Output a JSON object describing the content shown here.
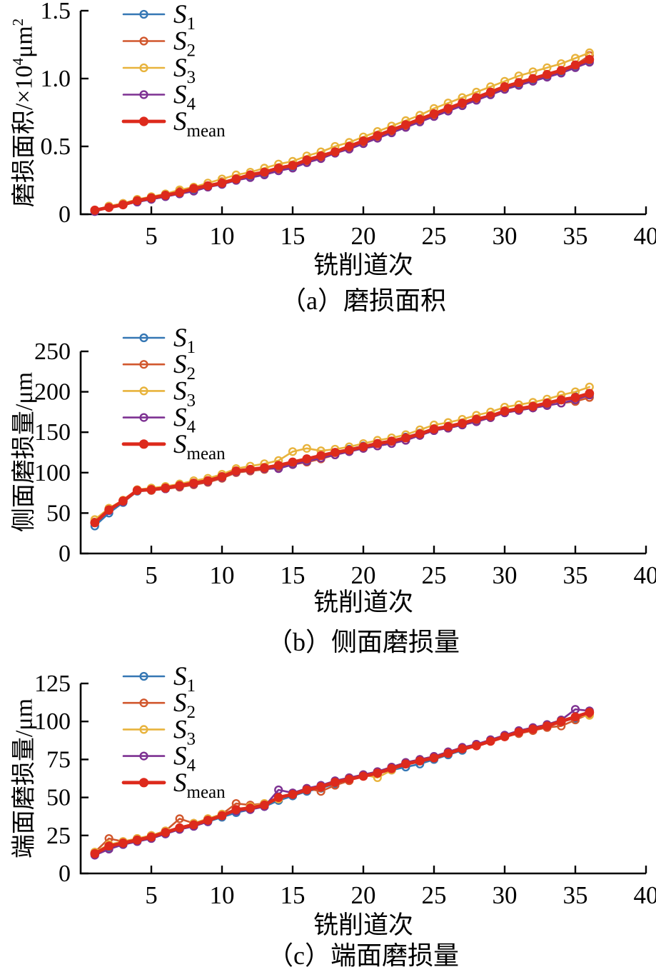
{
  "figure": {
    "background": "#ffffff",
    "axis_color": "#000000",
    "n_subplots": 3
  },
  "chart_data": [
    {
      "type": "line",
      "caption": "（a）磨损面积",
      "xlabel": "铣削道次",
      "ylabel": {
        "text": "磨损面积/×10⁴μm²",
        "segments": [
          {
            "t": "磨损面积/×10"
          },
          {
            "t": "4",
            "sup": true
          },
          {
            "t": "μm"
          },
          {
            "t": "2",
            "sup": true
          }
        ]
      },
      "xlim": [
        0,
        40
      ],
      "ylim": [
        0,
        1.5
      ],
      "xticks": [
        5,
        10,
        15,
        20,
        25,
        30,
        35,
        40
      ],
      "yticks": [
        0,
        0.5,
        1,
        1.5
      ],
      "ytick_labels": [
        "0",
        "0.5",
        "1.0",
        "1.5"
      ],
      "legend_position": "upper-left",
      "grid": false,
      "x": [
        1,
        2,
        3,
        4,
        5,
        6,
        7,
        8,
        9,
        10,
        11,
        12,
        13,
        14,
        15,
        16,
        17,
        18,
        19,
        20,
        21,
        22,
        23,
        24,
        25,
        26,
        27,
        28,
        29,
        30,
        31,
        32,
        33,
        34,
        35,
        36
      ],
      "series": [
        {
          "name": "S1",
          "label_base": "S",
          "label_sub": "1",
          "color": "#3577B4",
          "marker": "open",
          "values": [
            0.02,
            0.05,
            0.07,
            0.09,
            0.11,
            0.13,
            0.16,
            0.18,
            0.21,
            0.22,
            0.25,
            0.28,
            0.3,
            0.33,
            0.35,
            0.39,
            0.42,
            0.46,
            0.49,
            0.53,
            0.57,
            0.61,
            0.65,
            0.69,
            0.73,
            0.77,
            0.81,
            0.85,
            0.89,
            0.93,
            0.96,
            0.99,
            1.02,
            1.05,
            1.09,
            1.13
          ]
        },
        {
          "name": "S2",
          "label_base": "S",
          "label_sub": "2",
          "color": "#D1572D",
          "marker": "open",
          "values": [
            0.03,
            0.06,
            0.08,
            0.1,
            0.12,
            0.14,
            0.17,
            0.19,
            0.21,
            0.24,
            0.26,
            0.29,
            0.31,
            0.33,
            0.36,
            0.39,
            0.42,
            0.46,
            0.49,
            0.53,
            0.57,
            0.61,
            0.65,
            0.69,
            0.73,
            0.77,
            0.81,
            0.85,
            0.89,
            0.93,
            0.97,
            1.0,
            1.03,
            1.06,
            1.1,
            1.17
          ]
        },
        {
          "name": "S3",
          "label_base": "S",
          "label_sub": "3",
          "color": "#E8B33C",
          "marker": "open",
          "values": [
            0.03,
            0.06,
            0.08,
            0.11,
            0.13,
            0.15,
            0.18,
            0.2,
            0.23,
            0.26,
            0.29,
            0.31,
            0.34,
            0.37,
            0.39,
            0.43,
            0.46,
            0.5,
            0.53,
            0.57,
            0.61,
            0.65,
            0.69,
            0.73,
            0.78,
            0.82,
            0.86,
            0.9,
            0.94,
            0.98,
            1.02,
            1.05,
            1.08,
            1.11,
            1.15,
            1.19
          ]
        },
        {
          "name": "S4",
          "label_base": "S",
          "label_sub": "4",
          "color": "#7D3192",
          "marker": "open",
          "values": [
            0.02,
            0.05,
            0.07,
            0.09,
            0.11,
            0.13,
            0.15,
            0.17,
            0.2,
            0.22,
            0.25,
            0.27,
            0.29,
            0.32,
            0.34,
            0.38,
            0.41,
            0.45,
            0.48,
            0.52,
            0.56,
            0.6,
            0.64,
            0.68,
            0.72,
            0.76,
            0.8,
            0.84,
            0.88,
            0.92,
            0.95,
            0.98,
            1.01,
            1.04,
            1.08,
            1.12
          ]
        },
        {
          "name": "Smean",
          "label_base": "S",
          "label_sub": "mean",
          "color": "#DD2A1C",
          "marker": "filled",
          "values": [
            0.03,
            0.05,
            0.07,
            0.1,
            0.12,
            0.14,
            0.16,
            0.19,
            0.21,
            0.23,
            0.26,
            0.29,
            0.31,
            0.34,
            0.36,
            0.4,
            0.43,
            0.46,
            0.5,
            0.54,
            0.58,
            0.62,
            0.66,
            0.7,
            0.74,
            0.78,
            0.82,
            0.86,
            0.9,
            0.94,
            0.97,
            1.0,
            1.03,
            1.06,
            1.1,
            1.14
          ]
        }
      ]
    },
    {
      "type": "line",
      "caption": "（b）侧面磨损量",
      "xlabel": "铣削道次",
      "ylabel": {
        "text": "侧面磨损量/μm",
        "segments": [
          {
            "t": "侧面磨损量/μm"
          }
        ]
      },
      "xlim": [
        0,
        40
      ],
      "ylim": [
        0,
        250
      ],
      "xticks": [
        5,
        10,
        15,
        20,
        25,
        30,
        35,
        40
      ],
      "yticks": [
        0,
        50,
        100,
        150,
        200,
        250
      ],
      "ytick_labels": [
        "0",
        "50",
        "100",
        "150",
        "200",
        "250"
      ],
      "legend_position": "upper-left",
      "grid": false,
      "x": [
        1,
        2,
        3,
        4,
        5,
        6,
        7,
        8,
        9,
        10,
        11,
        12,
        13,
        14,
        15,
        16,
        17,
        18,
        19,
        20,
        21,
        22,
        23,
        24,
        25,
        26,
        27,
        28,
        29,
        30,
        31,
        32,
        33,
        34,
        35,
        36
      ],
      "series": [
        {
          "name": "S1",
          "label_base": "S",
          "label_sub": "1",
          "color": "#3577B4",
          "marker": "open",
          "values": [
            34,
            50,
            63,
            77,
            78,
            80,
            83,
            86,
            90,
            94,
            101,
            104,
            106,
            108,
            112,
            116,
            121,
            125,
            129,
            133,
            136,
            139,
            144,
            149,
            154,
            157,
            161,
            165,
            170,
            176,
            179,
            182,
            185,
            190,
            194,
            198
          ]
        },
        {
          "name": "S2",
          "label_base": "S",
          "label_sub": "2",
          "color": "#D1572D",
          "marker": "open",
          "values": [
            39,
            54,
            65,
            78,
            78,
            80,
            82,
            85,
            88,
            93,
            100,
            102,
            104,
            106,
            110,
            113,
            117,
            122,
            126,
            130,
            133,
            136,
            140,
            146,
            152,
            155,
            159,
            163,
            168,
            174,
            177,
            180,
            183,
            186,
            188,
            193
          ]
        },
        {
          "name": "S3",
          "label_base": "S",
          "label_sub": "3",
          "color": "#E8B33C",
          "marker": "open",
          "values": [
            42,
            56,
            66,
            79,
            81,
            83,
            86,
            90,
            93,
            98,
            105,
            108,
            111,
            115,
            126,
            130,
            127,
            129,
            132,
            136,
            140,
            143,
            147,
            153,
            159,
            162,
            166,
            171,
            175,
            181,
            184,
            187,
            191,
            196,
            200,
            206
          ]
        },
        {
          "name": "S4",
          "label_base": "S",
          "label_sub": "4",
          "color": "#7D3192",
          "marker": "open",
          "values": [
            38,
            53,
            64,
            78,
            79,
            80,
            83,
            86,
            89,
            94,
            101,
            103,
            105,
            105,
            110,
            114,
            118,
            122,
            126,
            130,
            133,
            136,
            140,
            146,
            152,
            155,
            159,
            163,
            168,
            174,
            177,
            180,
            183,
            186,
            190,
            196
          ]
        },
        {
          "name": "Smean",
          "label_base": "S",
          "label_sub": "mean",
          "color": "#DD2A1C",
          "marker": "filled",
          "values": [
            38,
            54,
            65,
            78,
            79,
            81,
            84,
            87,
            90,
            95,
            102,
            104,
            106,
            109,
            113,
            117,
            121,
            125,
            128,
            132,
            136,
            139,
            143,
            148,
            154,
            157,
            161,
            166,
            170,
            176,
            179,
            182,
            186,
            190,
            193,
            198
          ]
        }
      ]
    },
    {
      "type": "line",
      "caption": "（c）端面磨损量",
      "xlabel": "铣削道次",
      "ylabel": {
        "text": "端面磨损量/μm",
        "segments": [
          {
            "t": "端面磨损量/μm"
          }
        ]
      },
      "xlim": [
        0,
        40
      ],
      "ylim": [
        0,
        125
      ],
      "xticks": [
        5,
        10,
        15,
        20,
        25,
        30,
        35,
        40
      ],
      "yticks": [
        0,
        25,
        50,
        75,
        100,
        125
      ],
      "ytick_labels": [
        "0",
        "25",
        "50",
        "75",
        "100",
        "125"
      ],
      "legend_position": "upper-left",
      "grid": false,
      "x": [
        1,
        2,
        3,
        4,
        5,
        6,
        7,
        8,
        9,
        10,
        11,
        12,
        13,
        14,
        15,
        16,
        17,
        18,
        19,
        20,
        21,
        22,
        23,
        24,
        25,
        26,
        27,
        28,
        29,
        30,
        31,
        32,
        33,
        34,
        35,
        36
      ],
      "series": [
        {
          "name": "S1",
          "label_base": "S",
          "label_sub": "1",
          "color": "#3577B4",
          "marker": "open",
          "values": [
            13,
            17,
            19,
            21,
            23,
            26,
            29,
            31,
            34,
            37,
            40,
            42,
            44,
            48,
            51,
            54,
            56,
            59,
            62,
            64,
            66,
            68,
            70,
            72,
            75,
            78,
            81,
            84,
            87,
            90,
            93,
            95,
            97,
            100,
            102,
            106
          ]
        },
        {
          "name": "S2",
          "label_base": "S",
          "label_sub": "2",
          "color": "#D1572D",
          "marker": "open",
          "values": [
            14,
            23,
            21,
            23,
            25,
            28,
            36,
            33,
            36,
            39,
            46,
            45,
            46,
            49,
            52,
            56,
            54,
            58,
            61,
            65,
            67,
            70,
            73,
            75,
            77,
            80,
            82,
            85,
            87,
            90,
            92,
            94,
            96,
            97,
            101,
            105
          ]
        },
        {
          "name": "S3",
          "label_base": "S",
          "label_sub": "3",
          "color": "#E8B33C",
          "marker": "open",
          "values": [
            14,
            19,
            21,
            23,
            25,
            28,
            30,
            33,
            36,
            39,
            42,
            44,
            46,
            49,
            52,
            55,
            57,
            60,
            63,
            65,
            63,
            68,
            72,
            74,
            76,
            79,
            82,
            84,
            87,
            90,
            93,
            95,
            98,
            101,
            103,
            104
          ]
        },
        {
          "name": "S4",
          "label_base": "S",
          "label_sub": "4",
          "color": "#7D3192",
          "marker": "open",
          "values": [
            12,
            16,
            19,
            21,
            23,
            26,
            29,
            31,
            34,
            38,
            41,
            42,
            44,
            55,
            53,
            56,
            58,
            61,
            63,
            65,
            67,
            70,
            73,
            75,
            77,
            80,
            83,
            85,
            88,
            91,
            94,
            96,
            98,
            101,
            108,
            107
          ]
        },
        {
          "name": "Smean",
          "label_base": "S",
          "label_sub": "mean",
          "color": "#DD2A1C",
          "marker": "filled",
          "values": [
            13,
            18,
            20,
            22,
            24,
            27,
            30,
            32,
            35,
            38,
            42,
            43,
            45,
            50,
            52,
            55,
            57,
            60,
            62,
            64,
            66,
            69,
            72,
            74,
            76,
            79,
            82,
            84,
            87,
            90,
            93,
            95,
            97,
            100,
            103,
            106
          ]
        }
      ]
    }
  ]
}
